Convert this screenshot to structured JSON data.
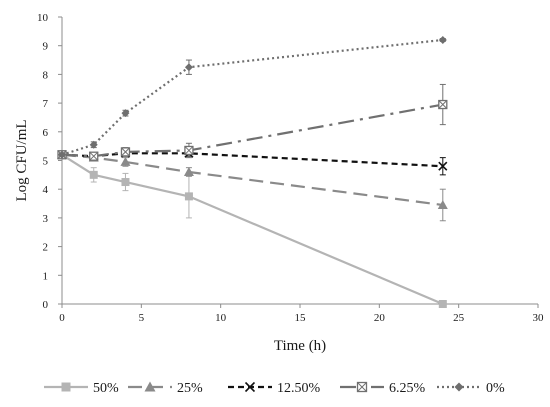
{
  "chart_data": {
    "type": "line",
    "xlabel": "Time (h)",
    "ylabel": "Log CFU/mL",
    "xlim": [
      0,
      30
    ],
    "ylim": [
      0,
      10
    ],
    "xticks": [
      0,
      5,
      10,
      15,
      20,
      25,
      30
    ],
    "yticks": [
      0,
      1,
      2,
      3,
      4,
      5,
      6,
      7,
      8,
      9,
      10
    ],
    "grid": false,
    "legend_position": "bottom",
    "series": [
      {
        "name": "50%",
        "color": "#b4b4b4",
        "marker": "square",
        "line_style": "solid",
        "x": [
          0,
          2,
          4,
          8,
          24
        ],
        "y": [
          5.2,
          4.5,
          4.25,
          3.75,
          0
        ],
        "error": [
          0,
          0.25,
          0.3,
          0.75,
          0
        ]
      },
      {
        "name": "25%",
        "color": "#8a8a8a",
        "marker": "triangle",
        "line_style": "long-dash",
        "x": [
          0,
          2,
          4,
          8,
          24
        ],
        "y": [
          5.2,
          5.1,
          4.95,
          4.6,
          3.45
        ],
        "error": [
          0.1,
          0.1,
          0.15,
          0.15,
          0.55
        ]
      },
      {
        "name": "12.50%",
        "color": "#111111",
        "marker": "x",
        "line_style": "dashed",
        "x": [
          0,
          2,
          4,
          8,
          24
        ],
        "y": [
          5.2,
          5.15,
          5.25,
          5.25,
          4.8
        ],
        "error": [
          0.1,
          0.1,
          0.1,
          0.1,
          0.3
        ]
      },
      {
        "name": "6.25%",
        "color": "#707070",
        "marker": "boxed-x",
        "line_style": "dash-dot",
        "x": [
          0,
          2,
          4,
          8,
          24
        ],
        "y": [
          5.2,
          5.15,
          5.3,
          5.35,
          6.95
        ],
        "error": [
          0.1,
          0.1,
          0.15,
          0.25,
          0.7
        ]
      },
      {
        "name": "0%",
        "color": "#6e6e6e",
        "marker": "diamond",
        "line_style": "dotted",
        "x": [
          0,
          2,
          4,
          8,
          24
        ],
        "y": [
          5.2,
          5.55,
          6.65,
          8.25,
          9.2
        ],
        "error": [
          0.05,
          0.1,
          0.1,
          0.25,
          0.05
        ]
      }
    ]
  }
}
